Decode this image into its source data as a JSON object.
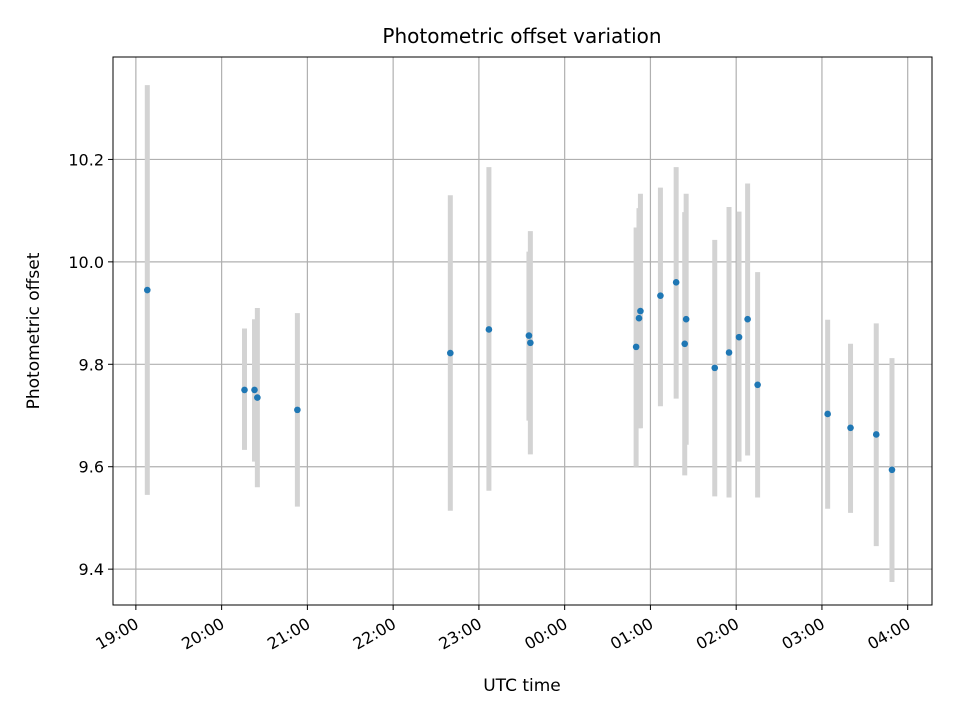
{
  "chart_data": {
    "type": "scatter",
    "title": "Photometric offset variation",
    "xlabel": "UTC time",
    "ylabel": "Photometric offset",
    "x_tick_labels": [
      "19:00",
      "20:00",
      "21:00",
      "22:00",
      "23:00",
      "00:00",
      "01:00",
      "02:00",
      "03:00",
      "04:00"
    ],
    "y_tick_labels": [
      "9.4",
      "9.6",
      "9.8",
      "10.0",
      "10.2"
    ],
    "y_ticks": [
      9.4,
      9.6,
      9.8,
      10.0,
      10.2
    ],
    "ylim": [
      9.33,
      10.4
    ],
    "grid": true,
    "colors": {
      "point": "#1f77b4",
      "error_bar": "#d3d3d3",
      "grid": "#b0b0b0"
    },
    "points": [
      {
        "t": "19:08",
        "y": 9.945,
        "lo": 9.545,
        "hi": 10.345
      },
      {
        "t": "20:16",
        "y": 9.75,
        "lo": 9.633,
        "hi": 9.87
      },
      {
        "t": "20:23",
        "y": 9.75,
        "lo": 9.61,
        "hi": 9.888
      },
      {
        "t": "20:25",
        "y": 9.735,
        "lo": 9.56,
        "hi": 9.91
      },
      {
        "t": "20:53",
        "y": 9.711,
        "lo": 9.522,
        "hi": 9.9
      },
      {
        "t": "22:40",
        "y": 9.822,
        "lo": 9.514,
        "hi": 10.13
      },
      {
        "t": "23:07",
        "y": 9.868,
        "lo": 9.553,
        "hi": 10.185
      },
      {
        "t": "23:35",
        "y": 9.856,
        "lo": 9.69,
        "hi": 10.02
      },
      {
        "t": "23:36",
        "y": 9.842,
        "lo": 9.624,
        "hi": 10.06
      },
      {
        "t": "00:50",
        "y": 9.834,
        "lo": 9.6,
        "hi": 10.067
      },
      {
        "t": "00:52",
        "y": 9.89,
        "lo": 9.675,
        "hi": 10.105
      },
      {
        "t": "00:53",
        "y": 9.904,
        "lo": 9.675,
        "hi": 10.133
      },
      {
        "t": "01:07",
        "y": 9.934,
        "lo": 9.718,
        "hi": 10.145
      },
      {
        "t": "01:18",
        "y": 9.96,
        "lo": 9.733,
        "hi": 10.185
      },
      {
        "t": "01:24",
        "y": 9.84,
        "lo": 9.583,
        "hi": 10.097
      },
      {
        "t": "01:25",
        "y": 9.888,
        "lo": 9.643,
        "hi": 10.133
      },
      {
        "t": "01:45",
        "y": 9.793,
        "lo": 9.542,
        "hi": 10.043
      },
      {
        "t": "01:55",
        "y": 9.823,
        "lo": 9.54,
        "hi": 10.107
      },
      {
        "t": "02:02",
        "y": 9.853,
        "lo": 9.61,
        "hi": 10.098
      },
      {
        "t": "02:08",
        "y": 9.888,
        "lo": 9.622,
        "hi": 10.153
      },
      {
        "t": "02:15",
        "y": 9.76,
        "lo": 9.54,
        "hi": 9.98
      },
      {
        "t": "03:04",
        "y": 9.703,
        "lo": 9.518,
        "hi": 9.887
      },
      {
        "t": "03:20",
        "y": 9.676,
        "lo": 9.51,
        "hi": 9.84
      },
      {
        "t": "03:38",
        "y": 9.663,
        "lo": 9.445,
        "hi": 9.88
      },
      {
        "t": "03:49",
        "y": 9.594,
        "lo": 9.375,
        "hi": 9.812
      }
    ]
  }
}
